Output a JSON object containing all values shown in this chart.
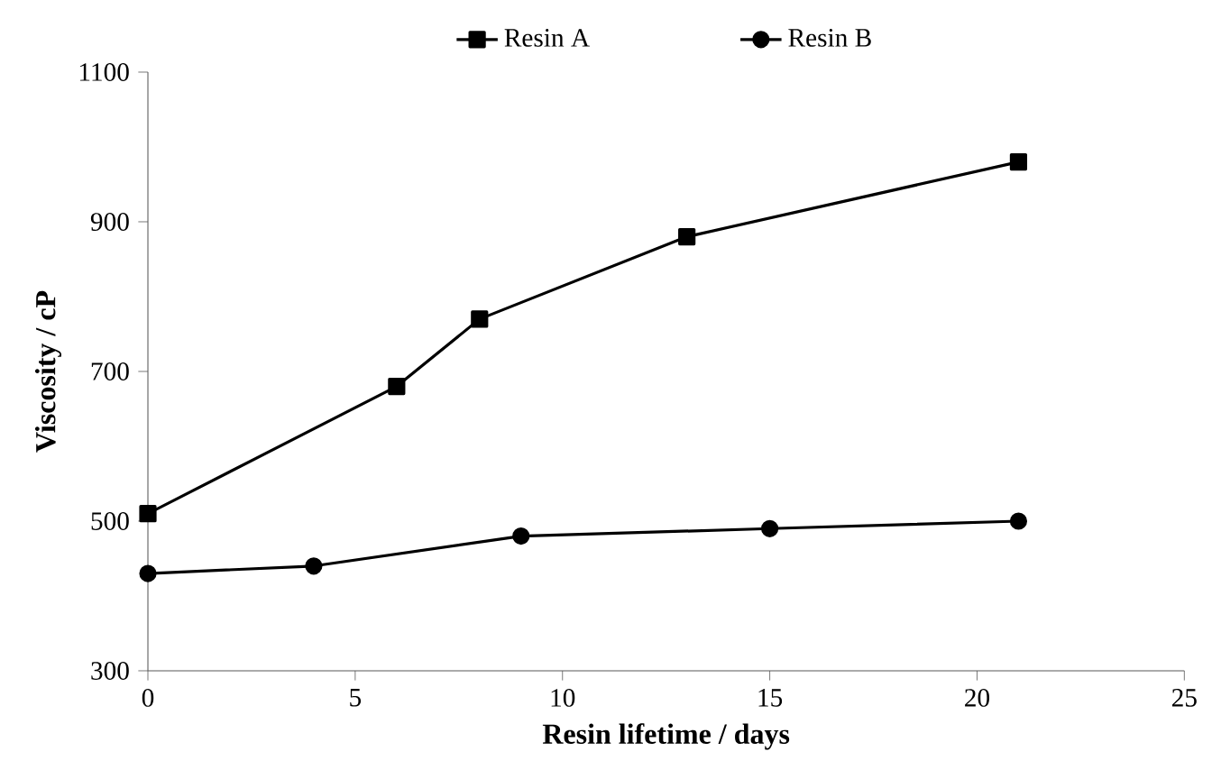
{
  "chart_data": {
    "type": "line",
    "xlabel": "Resin lifetime / days",
    "ylabel": "Viscosity / cP",
    "xlim": [
      0,
      25
    ],
    "xticks": [
      0,
      5,
      10,
      15,
      20,
      25
    ],
    "ylim": [
      300,
      1100
    ],
    "yticks": [
      300,
      500,
      700,
      900,
      1100
    ],
    "grid": false,
    "legend": "top",
    "line_style": "solid",
    "series": [
      {
        "name": "Resin A",
        "color": "#000000",
        "marker": "square",
        "x": [
          0,
          6,
          8,
          13,
          21
        ],
        "values": [
          510,
          680,
          770,
          880,
          980
        ]
      },
      {
        "name": "Resin B",
        "color": "#000000",
        "marker": "circle",
        "x": [
          0,
          4,
          9,
          15,
          21
        ],
        "values": [
          430,
          440,
          480,
          490,
          500
        ]
      }
    ]
  }
}
